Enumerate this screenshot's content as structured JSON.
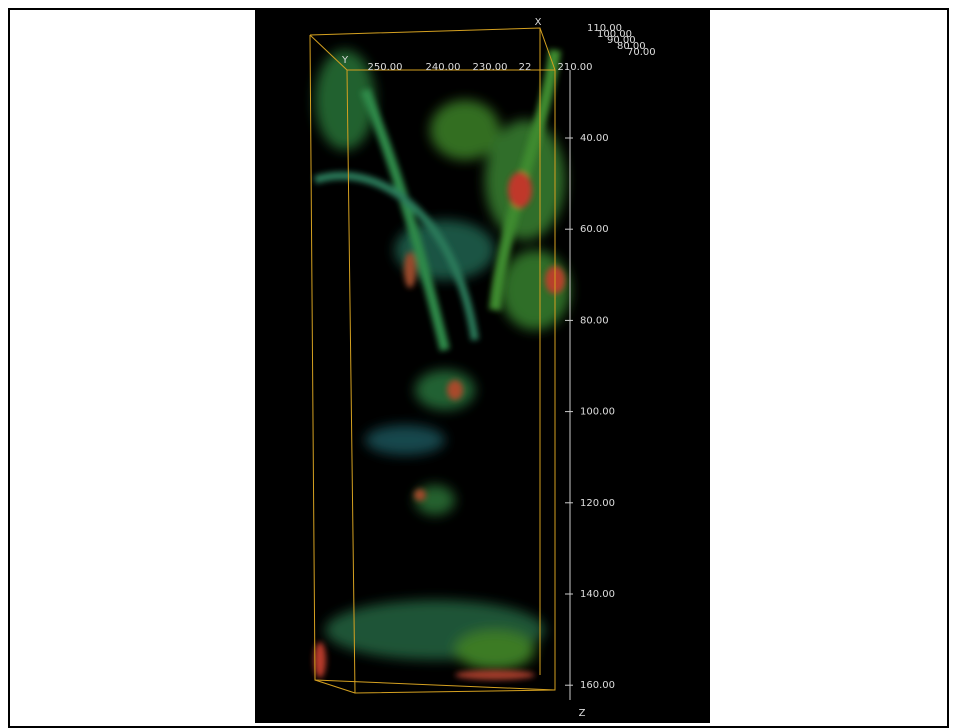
{
  "axes": {
    "x_label": "X",
    "y_label": "Y",
    "z_label": "Z",
    "top_ticks": [
      "250.00",
      "240.00",
      "230.00",
      "22",
      "210.00"
    ],
    "corner_ticks": [
      "110.00",
      "100.00",
      "90.00",
      "80.00",
      "70.00"
    ],
    "right_ticks": [
      "40.00",
      "60.00",
      "80.00",
      "100.00",
      "120.00",
      "140.00",
      "160.00"
    ]
  }
}
